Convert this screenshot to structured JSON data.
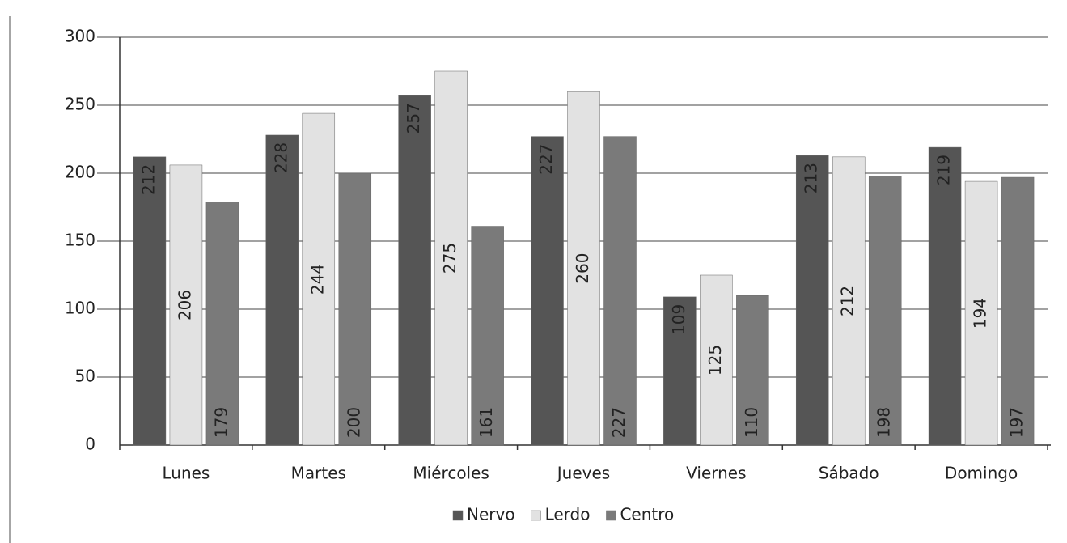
{
  "chart_data": {
    "type": "bar",
    "categories": [
      "Lunes",
      "Martes",
      "Miércoles",
      "Jueves",
      "Viernes",
      "Sábado",
      "Domingo"
    ],
    "series": [
      {
        "name": "Nervo",
        "color": "#555555",
        "values": [
          212,
          228,
          257,
          227,
          109,
          213,
          219
        ]
      },
      {
        "name": "Lerdo",
        "color": "#e2e2e2",
        "values": [
          206,
          244,
          275,
          260,
          125,
          212,
          194
        ]
      },
      {
        "name": "Centro",
        "color": "#7a7a7a",
        "values": [
          179,
          200,
          161,
          227,
          110,
          198,
          197
        ]
      }
    ],
    "ylim": [
      0,
      300
    ],
    "yticks": [
      0,
      50,
      100,
      150,
      200,
      250,
      300
    ],
    "grid": true,
    "legend": "bottom"
  }
}
